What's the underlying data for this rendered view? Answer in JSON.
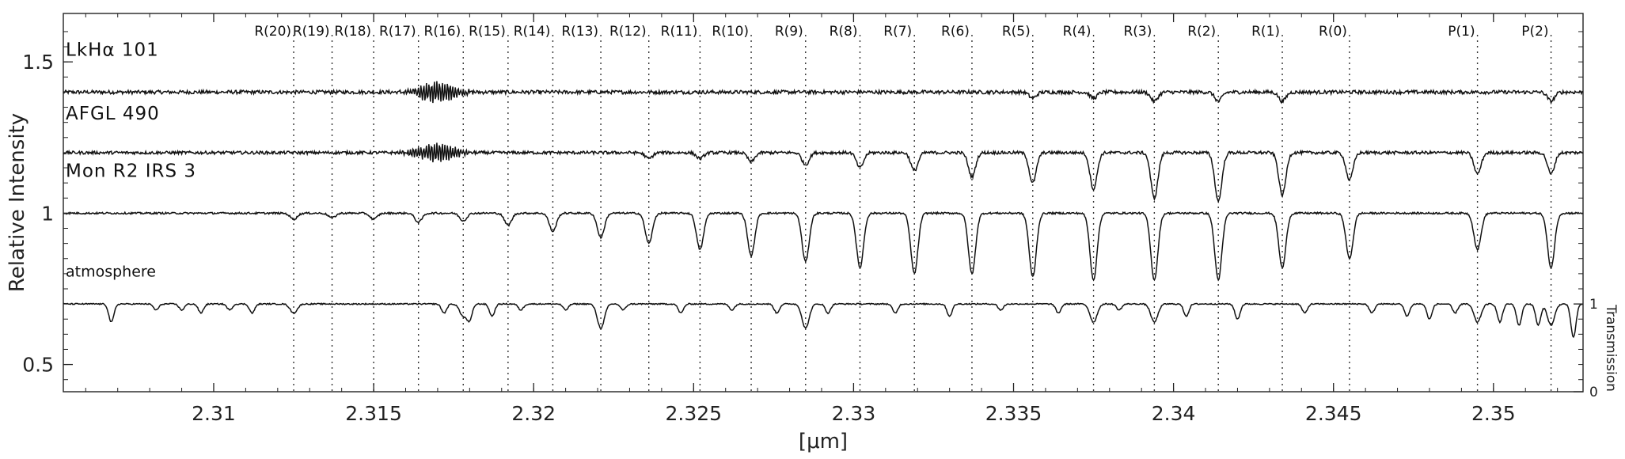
{
  "chart_data": {
    "type": "line",
    "xlabel": "[μm]",
    "ylabel": "Relative Intensity",
    "ylabel_right": "Transmission",
    "xlim": [
      2.3053,
      2.3528
    ],
    "ylim": [
      0.41,
      1.66
    ],
    "xticks": [
      "2.31",
      "2.315",
      "2.32",
      "2.325",
      "2.33",
      "2.335",
      "2.34",
      "2.345",
      "2.35"
    ],
    "xtick_values": [
      2.31,
      2.315,
      2.32,
      2.325,
      2.33,
      2.335,
      2.34,
      2.345,
      2.35
    ],
    "yticks": [
      "0.5",
      "1",
      "1.5"
    ],
    "ytick_values": [
      0.5,
      1.0,
      1.5
    ],
    "right_ticks": [
      "0",
      "1"
    ],
    "right_tick_values": [
      0.41,
      0.7
    ],
    "lines": [
      {
        "label": "R(20)",
        "x": 2.3125
      },
      {
        "label": "R(19)",
        "x": 2.3137
      },
      {
        "label": "R(18)",
        "x": 2.315
      },
      {
        "label": "R(17)",
        "x": 2.3164
      },
      {
        "label": "R(16)",
        "x": 2.3178
      },
      {
        "label": "R(15)",
        "x": 2.3192
      },
      {
        "label": "R(14)",
        "x": 2.3206
      },
      {
        "label": "R(13)",
        "x": 2.3221
      },
      {
        "label": "R(12)",
        "x": 2.3236
      },
      {
        "label": "R(11)",
        "x": 2.3252
      },
      {
        "label": "R(10)",
        "x": 2.3268
      },
      {
        "label": "R(9)",
        "x": 2.3285
      },
      {
        "label": "R(8)",
        "x": 2.3302
      },
      {
        "label": "R(7)",
        "x": 2.3319
      },
      {
        "label": "R(6)",
        "x": 2.3337
      },
      {
        "label": "R(5)",
        "x": 2.3356
      },
      {
        "label": "R(4)",
        "x": 2.3375
      },
      {
        "label": "R(3)",
        "x": 2.3394
      },
      {
        "label": "R(2)",
        "x": 2.3414
      },
      {
        "label": "R(1)",
        "x": 2.3434
      },
      {
        "label": "R(0)",
        "x": 2.3455
      },
      {
        "label": "P(1)",
        "x": 2.3495
      },
      {
        "label": "P(2)",
        "x": 2.3518
      }
    ],
    "series": [
      {
        "name": "LkHα 101",
        "baseline": 1.4,
        "depths": [
          0.0,
          0.0,
          0.0,
          0.0,
          0.0,
          0.0,
          0.0,
          0.0,
          0.0,
          0.0,
          0.0,
          0.0,
          0.0,
          0.0,
          0.0,
          0.02,
          0.02,
          0.03,
          0.03,
          0.03,
          0.0,
          0.0,
          0.03
        ],
        "noise": 0.006,
        "burst_center": 2.317,
        "burst_amp": 0.035
      },
      {
        "name": "AFGL 490",
        "baseline": 1.2,
        "depths": [
          0.0,
          0.0,
          0.0,
          0.0,
          0.0,
          0.0,
          0.0,
          0.0,
          0.02,
          0.02,
          0.03,
          0.04,
          0.05,
          0.06,
          0.08,
          0.1,
          0.12,
          0.15,
          0.16,
          0.14,
          0.09,
          0.07,
          0.07
        ],
        "noise": 0.005,
        "burst_center": 2.317,
        "burst_amp": 0.03
      },
      {
        "name": "Mon R2 IRS 3",
        "baseline": 1.0,
        "depths": [
          0.02,
          0.015,
          0.02,
          0.03,
          0.025,
          0.04,
          0.06,
          0.08,
          0.1,
          0.12,
          0.14,
          0.16,
          0.18,
          0.2,
          0.2,
          0.21,
          0.22,
          0.22,
          0.22,
          0.18,
          0.15,
          0.12,
          0.18
        ],
        "noise": 0.003,
        "burst_center": 2.317,
        "burst_amp": 0.0
      },
      {
        "name": "atmosphere",
        "baseline": 0.7,
        "depths": [
          0.03,
          0.0,
          0.0,
          0.0,
          0.04,
          0.0,
          0.0,
          0.08,
          0.0,
          0.0,
          0.0,
          0.08,
          0.0,
          0.0,
          0.0,
          0.0,
          0.06,
          0.06,
          0.0,
          0.0,
          0.0,
          0.06,
          0.07
        ],
        "noise": 0.002,
        "burst_center": 2.317,
        "burst_amp": 0.0
      }
    ],
    "telluric_dips": [
      2.3068,
      2.3082,
      2.309,
      2.3096,
      2.3105,
      2.3112,
      2.3172,
      2.318,
      2.3187,
      2.3196,
      2.321,
      2.3228,
      2.3246,
      2.3262,
      2.3276,
      2.3292,
      2.3313,
      2.333,
      2.3346,
      2.3364,
      2.3383,
      2.3404,
      2.342,
      2.3441,
      2.3462,
      2.3473,
      2.348,
      2.3488,
      2.3502,
      2.3508,
      2.3514,
      2.3525
    ],
    "telluric_depths": [
      0.06,
      0.02,
      0.02,
      0.03,
      0.02,
      0.03,
      0.03,
      0.05,
      0.04,
      0.02,
      0.02,
      0.02,
      0.03,
      0.02,
      0.03,
      0.03,
      0.03,
      0.04,
      0.02,
      0.03,
      0.02,
      0.04,
      0.05,
      0.03,
      0.03,
      0.04,
      0.05,
      0.03,
      0.06,
      0.07,
      0.07,
      0.11
    ],
    "grid": false,
    "legend": "none"
  }
}
